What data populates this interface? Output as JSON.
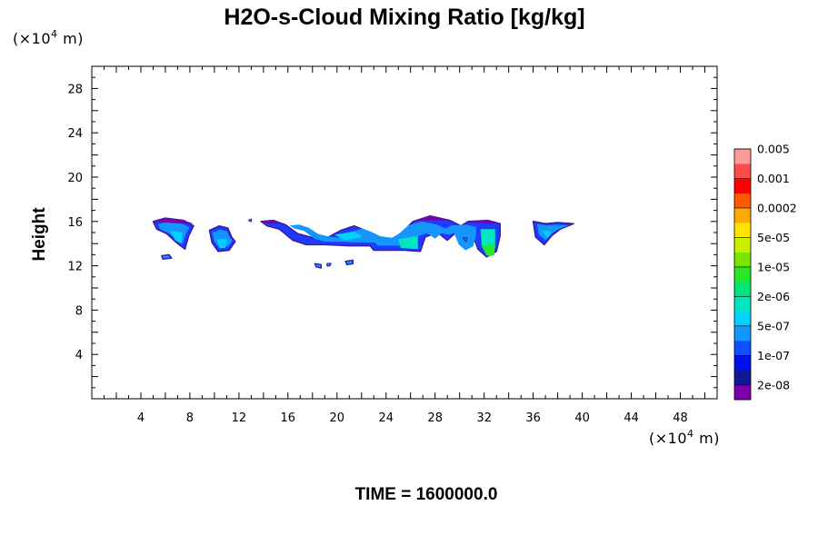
{
  "chart_data": {
    "type": "contour",
    "title": "H2O-s-Cloud Mixing Ratio [kg/kg]",
    "ylabel": "Height",
    "xunit_prefix": "(×10",
    "xunit_exp": "4",
    "xunit_suffix": " m)",
    "yunit_prefix": "(×10",
    "yunit_exp": "4",
    "yunit_suffix": " m)",
    "footer": "TIME = 1600000.0",
    "xlim": [
      0,
      51
    ],
    "ylim": [
      0,
      30
    ],
    "x_ticks": [
      4,
      8,
      12,
      16,
      20,
      24,
      28,
      32,
      36,
      40,
      44,
      48
    ],
    "y_ticks": [
      4,
      8,
      12,
      16,
      20,
      24,
      28
    ],
    "colorbar": {
      "colors": [
        "#7a00a8",
        "#101896",
        "#0010e6",
        "#0c50ff",
        "#1496ff",
        "#00d2ff",
        "#00e6c0",
        "#00e678",
        "#28e628",
        "#78e600",
        "#c8f000",
        "#ffe600",
        "#ffaa00",
        "#ff5a00",
        "#ff0000",
        "#ff4a4a",
        "#ff9a9a"
      ],
      "labels": [
        "2e-08",
        "1e-07",
        "5e-07",
        "2e-06",
        "1e-05",
        "5e-05",
        "0.0002",
        "0.001",
        "0.005"
      ]
    },
    "cloud_features": [
      {
        "name": "cloud-1",
        "points": [
          [
            5.0,
            16.0
          ],
          [
            6.0,
            16.3
          ],
          [
            7.5,
            16.1
          ],
          [
            8.3,
            15.6
          ],
          [
            7.9,
            14.7
          ],
          [
            7.6,
            13.5
          ],
          [
            7.0,
            14.0
          ],
          [
            6.1,
            14.9
          ],
          [
            5.3,
            15.3
          ]
        ]
      },
      {
        "name": "cloud-2",
        "points": [
          [
            9.6,
            15.2
          ],
          [
            10.4,
            15.6
          ],
          [
            11.1,
            15.4
          ],
          [
            11.4,
            14.6
          ],
          [
            11.7,
            14.2
          ],
          [
            11.2,
            13.4
          ],
          [
            10.3,
            13.3
          ],
          [
            9.8,
            14.1
          ]
        ]
      },
      {
        "name": "cloud-3",
        "points": [
          [
            13.8,
            16.0
          ],
          [
            14.8,
            16.1
          ],
          [
            15.8,
            15.7
          ],
          [
            16.8,
            14.9
          ],
          [
            17.8,
            14.6
          ],
          [
            19.0,
            14.4
          ],
          [
            20.3,
            15.2
          ],
          [
            21.4,
            15.6
          ],
          [
            22.3,
            15.2
          ],
          [
            23.3,
            14.6
          ],
          [
            24.5,
            14.4
          ],
          [
            25.3,
            15.0
          ],
          [
            26.2,
            16.0
          ],
          [
            27.6,
            16.5
          ],
          [
            29.2,
            16.1
          ],
          [
            30.1,
            15.6
          ],
          [
            30.7,
            16.0
          ],
          [
            32.3,
            16.1
          ],
          [
            33.3,
            15.8
          ],
          [
            33.3,
            14.7
          ],
          [
            33.0,
            13.3
          ],
          [
            32.2,
            12.8
          ],
          [
            31.5,
            13.5
          ],
          [
            31.0,
            15.0
          ],
          [
            30.4,
            14.8
          ],
          [
            29.7,
            15.0
          ],
          [
            29.0,
            14.3
          ],
          [
            28.2,
            15.0
          ],
          [
            27.2,
            14.6
          ],
          [
            26.8,
            13.3
          ],
          [
            25.5,
            13.4
          ],
          [
            23.0,
            13.4
          ],
          [
            22.7,
            13.8
          ],
          [
            21.0,
            13.8
          ],
          [
            19.0,
            13.9
          ],
          [
            17.5,
            13.9
          ],
          [
            16.4,
            14.3
          ],
          [
            15.3,
            15.3
          ],
          [
            14.3,
            15.6
          ]
        ]
      },
      {
        "name": "cloud-4",
        "points": [
          [
            36.0,
            16.0
          ],
          [
            37.0,
            15.8
          ],
          [
            38.0,
            15.9
          ],
          [
            39.3,
            15.8
          ],
          [
            38.2,
            15.3
          ],
          [
            37.5,
            14.7
          ],
          [
            36.9,
            13.9
          ],
          [
            36.2,
            14.6
          ]
        ]
      },
      {
        "name": "cloud-5",
        "points": [
          [
            5.7,
            12.9
          ],
          [
            6.3,
            13.0
          ],
          [
            6.5,
            12.7
          ],
          [
            5.8,
            12.6
          ]
        ]
      },
      {
        "name": "cloud-6",
        "points": [
          [
            18.2,
            12.2
          ],
          [
            18.7,
            12.1
          ],
          [
            18.7,
            11.8
          ],
          [
            18.3,
            11.9
          ]
        ]
      },
      {
        "name": "cloud-7",
        "points": [
          [
            19.2,
            12.2
          ],
          [
            19.5,
            12.2
          ],
          [
            19.4,
            12.0
          ],
          [
            19.2,
            12.0
          ]
        ]
      },
      {
        "name": "cloud-8",
        "points": [
          [
            20.7,
            12.4
          ],
          [
            21.3,
            12.5
          ],
          [
            21.3,
            12.2
          ],
          [
            20.8,
            12.1
          ]
        ]
      },
      {
        "name": "cloud-9",
        "points": [
          [
            12.8,
            16.1
          ],
          [
            13.0,
            16.2
          ],
          [
            13.0,
            16.0
          ]
        ]
      },
      {
        "name": "cloud-10",
        "points": [
          [
            30.3,
            14.5
          ],
          [
            30.6,
            14.5
          ],
          [
            30.5,
            14.2
          ]
        ]
      }
    ],
    "cloud_cores": [
      {
        "name": "core-1",
        "color": "#00d2ff",
        "points": [
          [
            6.4,
            15.2
          ],
          [
            7.4,
            15.0
          ],
          [
            7.3,
            14.0
          ],
          [
            6.8,
            14.3
          ]
        ]
      },
      {
        "name": "core-2",
        "color": "#00d2ff",
        "points": [
          [
            10.2,
            14.4
          ],
          [
            11.0,
            14.4
          ],
          [
            10.9,
            13.6
          ],
          [
            10.4,
            13.6
          ]
        ]
      },
      {
        "name": "core-3",
        "color": "#00e6c0",
        "points": [
          [
            25.0,
            14.4
          ],
          [
            26.6,
            14.7
          ],
          [
            26.6,
            13.5
          ],
          [
            25.2,
            13.6
          ]
        ]
      },
      {
        "name": "core-4",
        "color": "#00e6c0",
        "points": [
          [
            31.7,
            15.3
          ],
          [
            32.9,
            15.3
          ],
          [
            32.9,
            13.6
          ],
          [
            31.8,
            13.8
          ]
        ]
      },
      {
        "name": "core-5",
        "color": "#28e628",
        "points": [
          [
            31.8,
            13.8
          ],
          [
            32.9,
            13.9
          ],
          [
            32.8,
            12.9
          ],
          [
            32.2,
            12.9
          ]
        ]
      },
      {
        "name": "core-6",
        "color": "#00d2ff",
        "points": [
          [
            19.8,
            14.8
          ],
          [
            21.4,
            15.1
          ],
          [
            22.1,
            14.6
          ],
          [
            20.6,
            14.3
          ]
        ]
      },
      {
        "name": "core-7",
        "color": "#00d2ff",
        "points": [
          [
            36.7,
            15.2
          ],
          [
            37.5,
            15.1
          ],
          [
            37.2,
            14.5
          ]
        ]
      }
    ],
    "cloud_tops": [
      {
        "name": "top-1",
        "points": [
          [
            5.0,
            16.0
          ],
          [
            6.0,
            16.3
          ],
          [
            7.5,
            16.1
          ],
          [
            8.3,
            15.8
          ],
          [
            7.5,
            15.8
          ],
          [
            6.0,
            15.9
          ]
        ]
      },
      {
        "name": "top-2",
        "points": [
          [
            26.2,
            16.0
          ],
          [
            27.6,
            16.5
          ],
          [
            29.2,
            16.1
          ],
          [
            28.0,
            16.1
          ],
          [
            27.0,
            16.1
          ]
        ]
      },
      {
        "name": "top-3",
        "points": [
          [
            30.7,
            16.0
          ],
          [
            32.3,
            16.1
          ],
          [
            33.3,
            15.8
          ],
          [
            32.0,
            15.8
          ]
        ]
      },
      {
        "name": "top-4",
        "points": [
          [
            13.8,
            16.0
          ],
          [
            14.8,
            16.1
          ],
          [
            15.2,
            15.8
          ],
          [
            14.3,
            15.8
          ]
        ]
      }
    ]
  }
}
